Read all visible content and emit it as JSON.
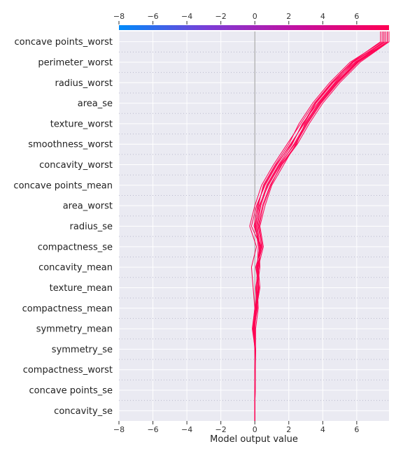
{
  "chart_data": {
    "type": "line",
    "subtype": "decision_plot",
    "xlabel": "Model output value",
    "xlim": [
      -8,
      7.9
    ],
    "x_ticks": [
      -8,
      -6,
      -4,
      -2,
      0,
      2,
      4,
      6
    ],
    "x_tick_labels": [
      "−8",
      "−6",
      "−4",
      "−2",
      "0",
      "2",
      "4",
      "6"
    ],
    "base_value": 0,
    "features": [
      "concave points_worst",
      "perimeter_worst",
      "radius_worst",
      "area_se",
      "texture_worst",
      "smoothness_worst",
      "concavity_worst",
      "concave points_mean",
      "area_worst",
      "radius_se",
      "compactness_se",
      "concavity_mean",
      "texture_mean",
      "compactness_mean",
      "symmetry_mean",
      "symmetry_se",
      "compactness_worst",
      "concave points_se",
      "concavity_se"
    ],
    "colorbar": {
      "range": [
        -8,
        7.9
      ],
      "colors": [
        "#008bfa",
        "#7c3cd6",
        "#c4109f",
        "#ff0052"
      ]
    },
    "line_color": "#ff0052",
    "series": [
      {
        "values": [
          0,
          0.02,
          0.03,
          0.05,
          -0.05,
          0.15,
          0.1,
          0.2,
          0.35,
          -0.2,
          0.1,
          0.6,
          1.3,
          2.1,
          2.9,
          3.6,
          4.6,
          5.9,
          7.8
        ]
      },
      {
        "values": [
          0,
          0.01,
          0.02,
          0.0,
          -0.1,
          0.05,
          0.2,
          0.1,
          0.3,
          0.0,
          0.25,
          0.8,
          1.5,
          2.3,
          3.0,
          3.8,
          4.8,
          6.0,
          7.6
        ]
      },
      {
        "values": [
          0,
          0.0,
          0.01,
          0.03,
          0.0,
          0.1,
          0.3,
          0.2,
          0.5,
          0.3,
          0.6,
          1.0,
          1.7,
          2.4,
          3.1,
          3.9,
          4.9,
          6.1,
          7.9
        ]
      },
      {
        "values": [
          0,
          0.02,
          0.0,
          0.02,
          -0.15,
          0.0,
          -0.1,
          -0.2,
          0.1,
          -0.3,
          0.0,
          0.4,
          1.1,
          1.9,
          2.7,
          3.5,
          4.5,
          5.7,
          7.4
        ]
      },
      {
        "values": [
          0,
          0.01,
          0.02,
          0.04,
          0.05,
          0.2,
          0.15,
          0.3,
          0.25,
          0.1,
          0.3,
          0.7,
          1.4,
          2.2,
          2.8,
          3.7,
          4.7,
          5.8,
          7.7
        ]
      },
      {
        "values": [
          0,
          0.0,
          0.01,
          0.01,
          -0.05,
          0.1,
          0.25,
          0.05,
          0.4,
          0.2,
          0.45,
          0.9,
          1.6,
          2.5,
          3.2,
          4.0,
          5.0,
          6.2,
          7.9
        ]
      },
      {
        "values": [
          0,
          0.02,
          0.02,
          0.03,
          0.0,
          0.05,
          0.1,
          0.15,
          0.2,
          0.05,
          0.2,
          0.5,
          1.2,
          2.0,
          2.6,
          3.4,
          4.4,
          5.6,
          7.5
        ]
      },
      {
        "values": [
          0,
          0.01,
          0.0,
          0.02,
          -0.08,
          0.12,
          0.05,
          0.25,
          0.3,
          0.15,
          0.35,
          0.75,
          1.45,
          2.35,
          3.05,
          3.85,
          4.85,
          6.05,
          7.8
        ]
      },
      {
        "values": [
          0,
          0.0,
          0.02,
          0.05,
          -0.12,
          0.0,
          0.18,
          0.12,
          0.45,
          0.25,
          0.5,
          0.95,
          1.55,
          2.45,
          2.95,
          3.75,
          4.75,
          5.95,
          7.9
        ]
      },
      {
        "values": [
          0,
          0.02,
          0.01,
          0.0,
          -0.02,
          0.08,
          0.22,
          0.18,
          0.38,
          -0.05,
          0.15,
          0.55,
          1.25,
          2.15,
          2.85,
          3.55,
          4.55,
          5.75,
          7.6
        ]
      }
    ]
  }
}
